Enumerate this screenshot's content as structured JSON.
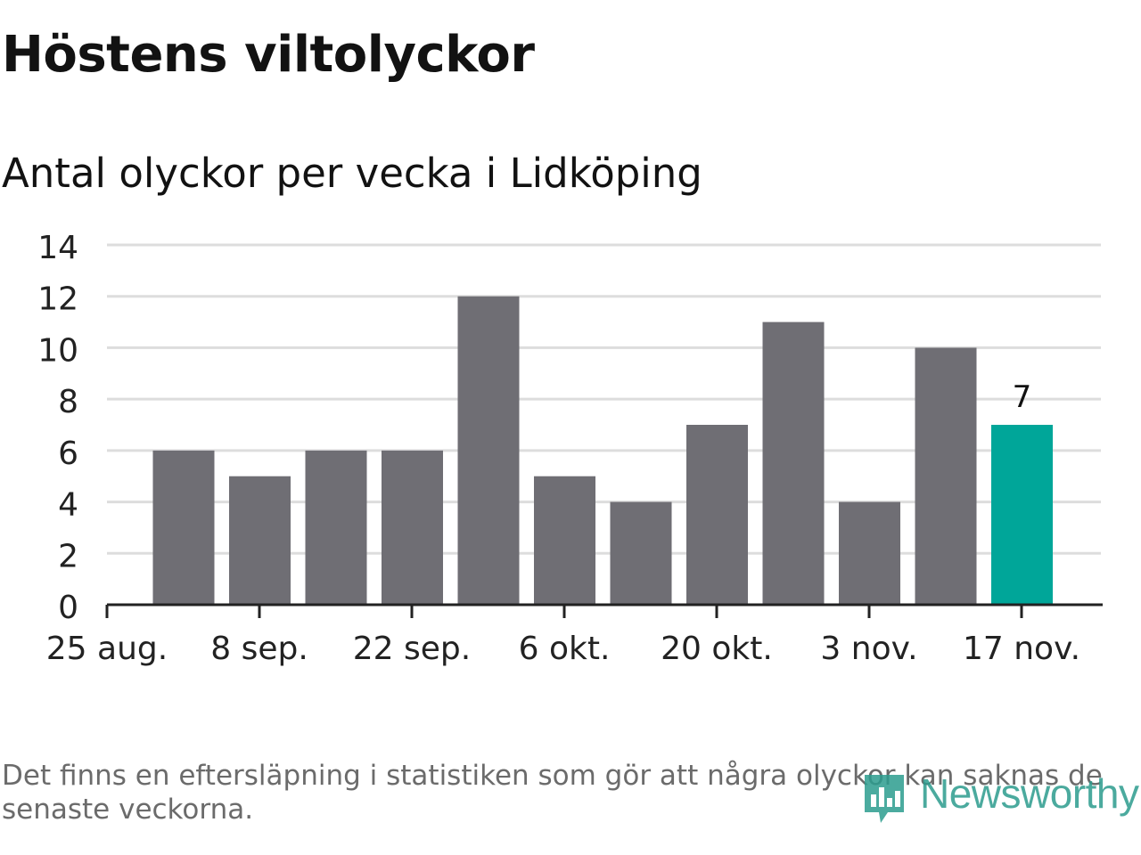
{
  "title": "Höstens viltolyckor",
  "subtitle": "Antal olyckor per vecka i Lidköping",
  "footnote": "Det finns en eftersläpning i statistiken som gör att några olyckor kan saknas de senaste veckorna.",
  "logo": {
    "text": "Newsworthy",
    "icon": "newsworthy-logo-icon"
  },
  "colors": {
    "bar": "#6f6e74",
    "highlight": "#00a699",
    "grid": "#dddddd",
    "axis": "#222222",
    "tick_text": "#222222"
  },
  "chart_data": {
    "type": "bar",
    "title": "Höstens viltolyckor",
    "subtitle": "Antal olyckor per vecka i Lidköping",
    "xlabel": "",
    "ylabel": "",
    "ylim": [
      0,
      14
    ],
    "yticks": [
      0,
      2,
      4,
      6,
      8,
      10,
      12,
      14
    ],
    "grid": true,
    "values": [
      6,
      5,
      6,
      6,
      12,
      5,
      4,
      7,
      11,
      4,
      10,
      7
    ],
    "x_tick_labels": [
      "25 aug.",
      "8 sep.",
      "22 sep.",
      "6 okt.",
      "20 okt.",
      "3 nov.",
      "17 nov."
    ],
    "highlight_index": 11,
    "value_labels": [
      {
        "index": 11,
        "text": "7"
      }
    ]
  }
}
